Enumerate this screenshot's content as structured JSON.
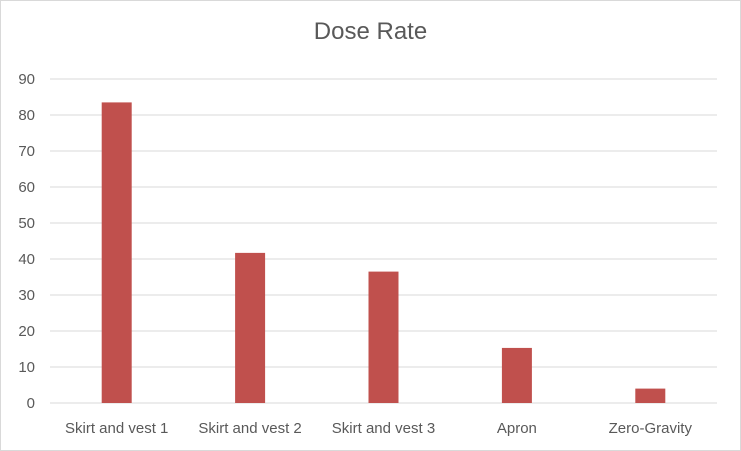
{
  "chart_data": {
    "type": "bar",
    "title": "Dose Rate",
    "xlabel": "",
    "ylabel": "",
    "categories": [
      "Skirt and vest 1",
      "Skirt and vest 2",
      "Skirt and vest 3",
      "Apron",
      "Zero-Gravity"
    ],
    "values": [
      83.5,
      41.7,
      36.5,
      15.3,
      4.0
    ],
    "ylim": [
      0,
      90
    ],
    "yticks": [
      0,
      10,
      20,
      30,
      40,
      50,
      60,
      70,
      80,
      90
    ],
    "grid": true,
    "legend": "none",
    "bar_color": "#c0504d",
    "grid_color": "#d9d9d9",
    "text_color": "#595959"
  }
}
